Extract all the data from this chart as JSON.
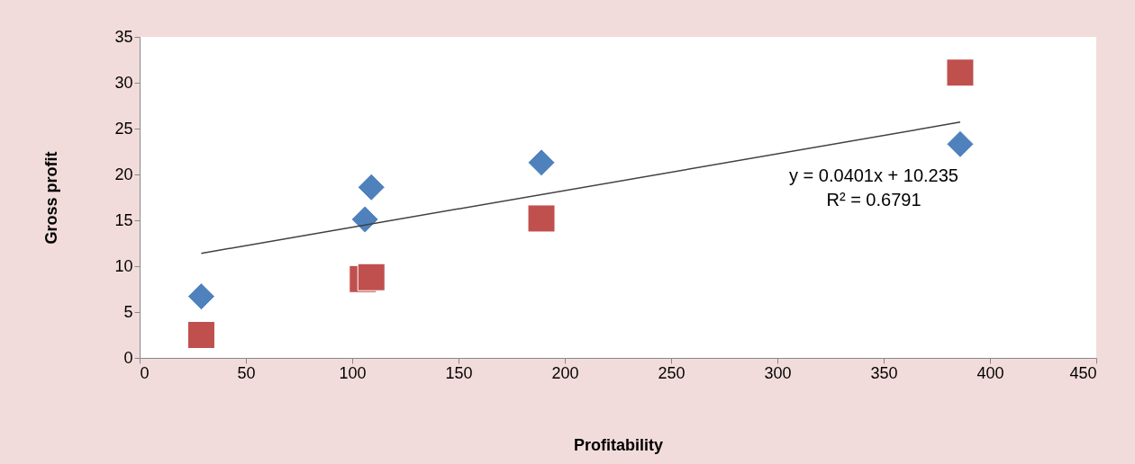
{
  "chart_data": {
    "type": "scatter",
    "xlabel": "Profitability",
    "ylabel": "Gross profit",
    "xlim": [
      0,
      450
    ],
    "xticks": [
      0,
      50,
      100,
      150,
      200,
      250,
      300,
      350,
      400,
      450
    ],
    "ylim": [
      0,
      35
    ],
    "yticks": [
      0,
      5,
      10,
      15,
      20,
      25,
      30,
      35
    ],
    "grid": false,
    "series": [
      {
        "color": "#4f81bd",
        "marker": "diamond",
        "x": [
          29,
          106,
          109,
          189,
          386
        ],
        "values": [
          6.7,
          15.1,
          18.6,
          21.3,
          23.3
        ]
      },
      {
        "color": "#c0504d",
        "marker": "square",
        "x": [
          29,
          105,
          109,
          189,
          386
        ],
        "values": [
          2.5,
          8.6,
          8.8,
          15.2,
          31.1
        ]
      },
      {
        "type": "line",
        "color": "#404040",
        "marker": "none",
        "x": [
          29,
          386
        ],
        "values": [
          11.4,
          25.7
        ]
      }
    ],
    "annotations": [
      "y = 0.0401x + 10.235",
      "R² = 0.6791"
    ]
  }
}
